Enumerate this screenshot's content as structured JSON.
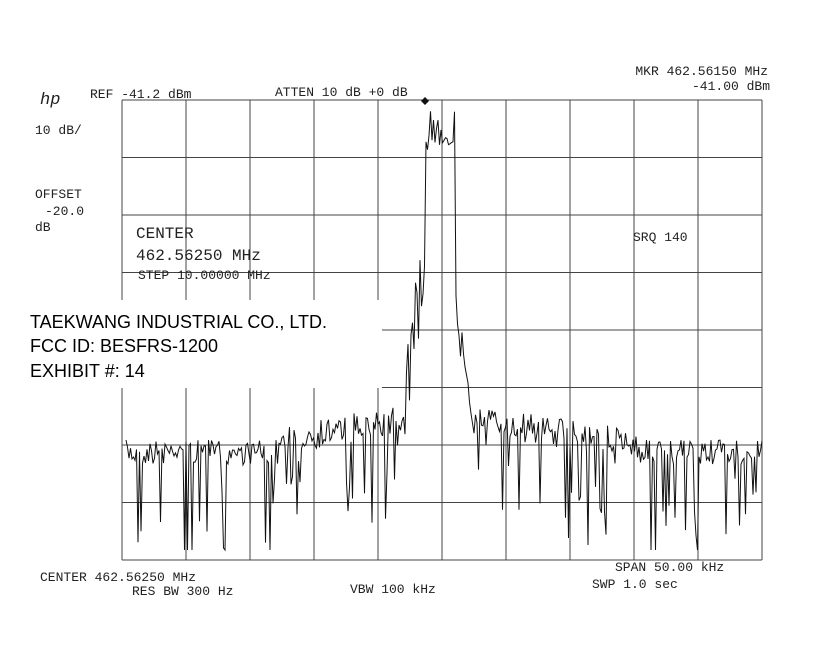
{
  "header": {
    "logo": "hp",
    "ref": "REF -41.2 dBm",
    "atten": "ATTEN 10 dB +0 dB",
    "marker_freq": "MKR 462.56150 MHz",
    "marker_level": "-41.00 dBm"
  },
  "settings": {
    "scale": "10 dB/",
    "offset_label": "OFFSET",
    "offset_value": "-20.0",
    "offset_unit": "dB",
    "center_label": "CENTER",
    "center_freq": "462.56250 MHz",
    "step": "STEP 10.00000 MHz",
    "srq": "SRQ 140"
  },
  "label": {
    "company": "TAEKWANG INDUSTRIAL CO., LTD.",
    "fcc_id": "FCC ID:  BESFRS-1200",
    "exhibit": "EXHIBIT #:  14"
  },
  "footer": {
    "center": "CENTER 462.56250 MHz",
    "res_bw": "RES BW 300 Hz",
    "vbw": "VBW 100 kHz",
    "span": "SPAN 50.00 kHz",
    "sweep": "SWP 1.0 sec"
  }
}
